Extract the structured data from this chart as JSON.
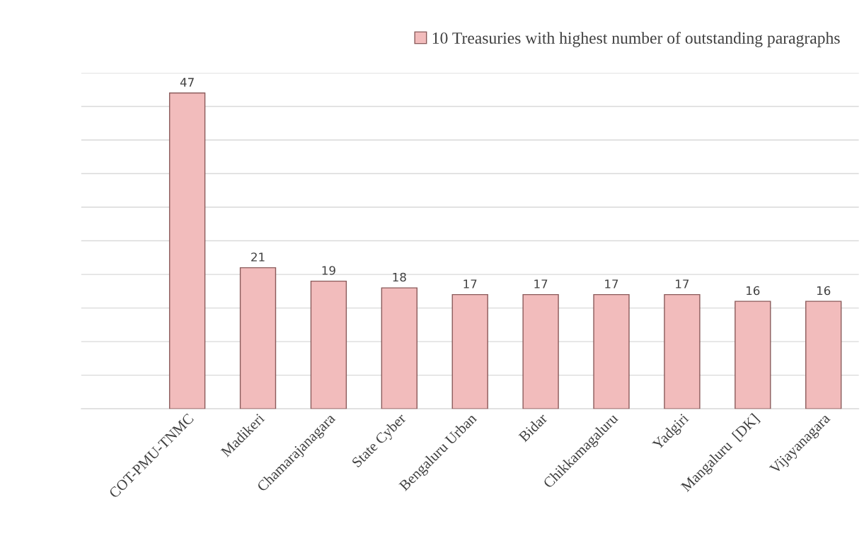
{
  "chart_data": {
    "type": "bar",
    "categories": [
      null,
      "COT-PMU-TNMC",
      "Madikeri",
      "Chamarajanagara",
      "State Cyber",
      "Bengaluru Urban",
      "Bidar",
      "Chikkamagaluru",
      "Yadgiri",
      "Mangaluru  [DK]",
      "Vijayanagara"
    ],
    "series": [
      {
        "name": "10 Treasuries with highest number of outstanding paragraphs",
        "color": "#f2bcbc",
        "values": [
          null,
          47,
          21,
          19,
          18,
          17,
          17,
          17,
          17,
          16,
          16
        ]
      }
    ],
    "ylim": [
      0,
      50
    ],
    "yticks": [
      {
        "value": 0,
        "label": null
      },
      {
        "value": 5,
        "label": null
      },
      {
        "value": 10,
        "label": null
      },
      {
        "value": 15,
        "label": null
      },
      {
        "value": 20,
        "label": null
      },
      {
        "value": 25,
        "label": null
      },
      {
        "value": 30,
        "label": null
      },
      {
        "value": 35,
        "label": null
      },
      {
        "value": 40,
        "label": null
      },
      {
        "value": 45,
        "label": null
      },
      {
        "value": 50,
        "label": null
      }
    ],
    "tick_labels": "x",
    "grid": "y",
    "data_labels": true,
    "legend": "top right"
  }
}
